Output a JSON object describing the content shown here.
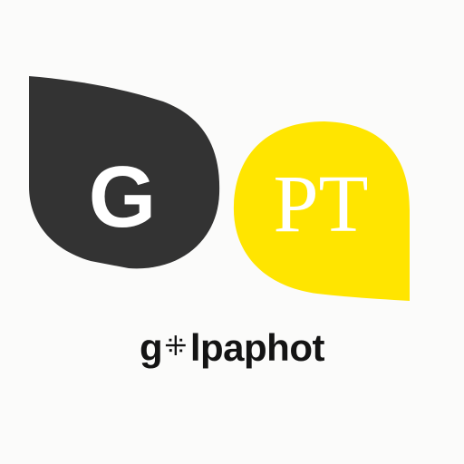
{
  "logo": {
    "left_bubble_letter": "G",
    "right_bubble_letter": "PT",
    "left_bubble_color": "#333333",
    "right_bubble_color": "#ffe500",
    "left_letter_color": "#ffffff",
    "right_letter_color": "#ffffff"
  },
  "wordmark": {
    "prefix": "g",
    "symbol": "⁜",
    "suffix": "lpaphot"
  }
}
